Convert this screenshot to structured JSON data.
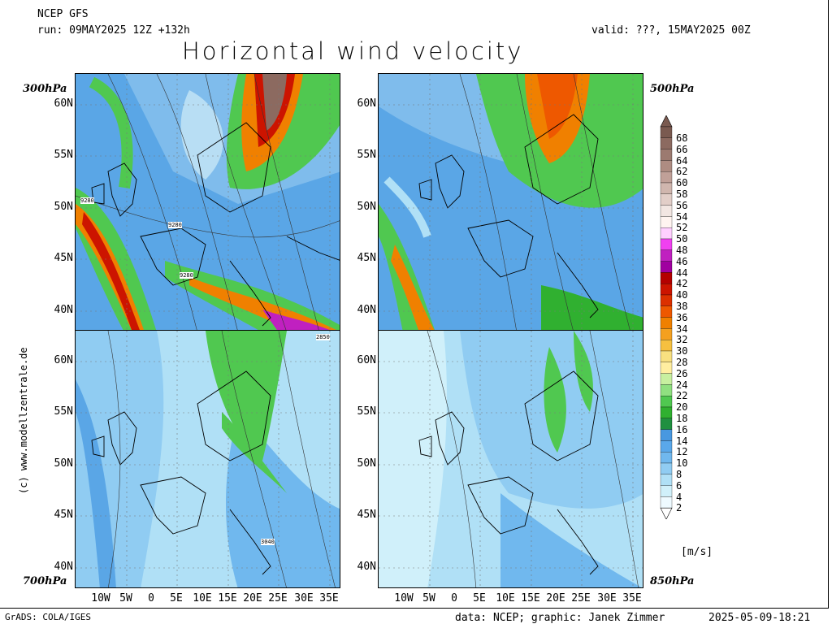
{
  "header": {
    "model": "NCEP GFS",
    "run": "run: 09MAY2025 12Z +132h",
    "valid": "valid: ???, 15MAY2025 00Z",
    "title": "Horizontal wind velocity"
  },
  "panels": {
    "top_left": {
      "level": "300hPa",
      "contour_labels": [
        "9280",
        "9280",
        "9280"
      ]
    },
    "top_right": {
      "level": "500hPa"
    },
    "bottom_left": {
      "level": "700hPa",
      "contour_labels": [
        "2850",
        "3040"
      ]
    },
    "bottom_right": {
      "level": "850hPa"
    }
  },
  "lat_labels": [
    "60N",
    "55N",
    "50N",
    "45N",
    "40N"
  ],
  "lon_labels": [
    "10W",
    "5W",
    "0",
    "5E",
    "10E",
    "15E",
    "20E",
    "25E",
    "30E",
    "35E"
  ],
  "colorbar": {
    "unit": "[m/s]",
    "labels": [
      "68",
      "66",
      "64",
      "62",
      "60",
      "58",
      "56",
      "54",
      "52",
      "50",
      "48",
      "46",
      "44",
      "42",
      "40",
      "38",
      "36",
      "34",
      "32",
      "30",
      "28",
      "26",
      "24",
      "22",
      "20",
      "18",
      "16",
      "14",
      "12",
      "10",
      "8",
      "6",
      "4",
      "2"
    ],
    "colors": [
      "#7a5a50",
      "#8c6a60",
      "#9c7a70",
      "#ae8c82",
      "#c0a098",
      "#d0b6ae",
      "#e2cec8",
      "#f2e6e2",
      "#fff4f0",
      "#ffd0ff",
      "#f040f0",
      "#c020c0",
      "#a000a0",
      "#b40000",
      "#cc1400",
      "#dc3000",
      "#ee5800",
      "#f08000",
      "#f4a020",
      "#f6c040",
      "#f8e080",
      "#ffeea0",
      "#c8f0a0",
      "#90e080",
      "#50c850",
      "#30b030",
      "#209040",
      "#4898e0",
      "#5aa8ea",
      "#70b8ee",
      "#90ccf2",
      "#b0e0f6",
      "#d0f0fa",
      "#eefaff"
    ]
  },
  "copyright": "(c) www.modellzentrale.de",
  "footer": {
    "left": "GrADS: COLA/IGES",
    "center": "data: NCEP; graphic: Janek Zimmer",
    "right": "2025-05-09-18:21"
  }
}
